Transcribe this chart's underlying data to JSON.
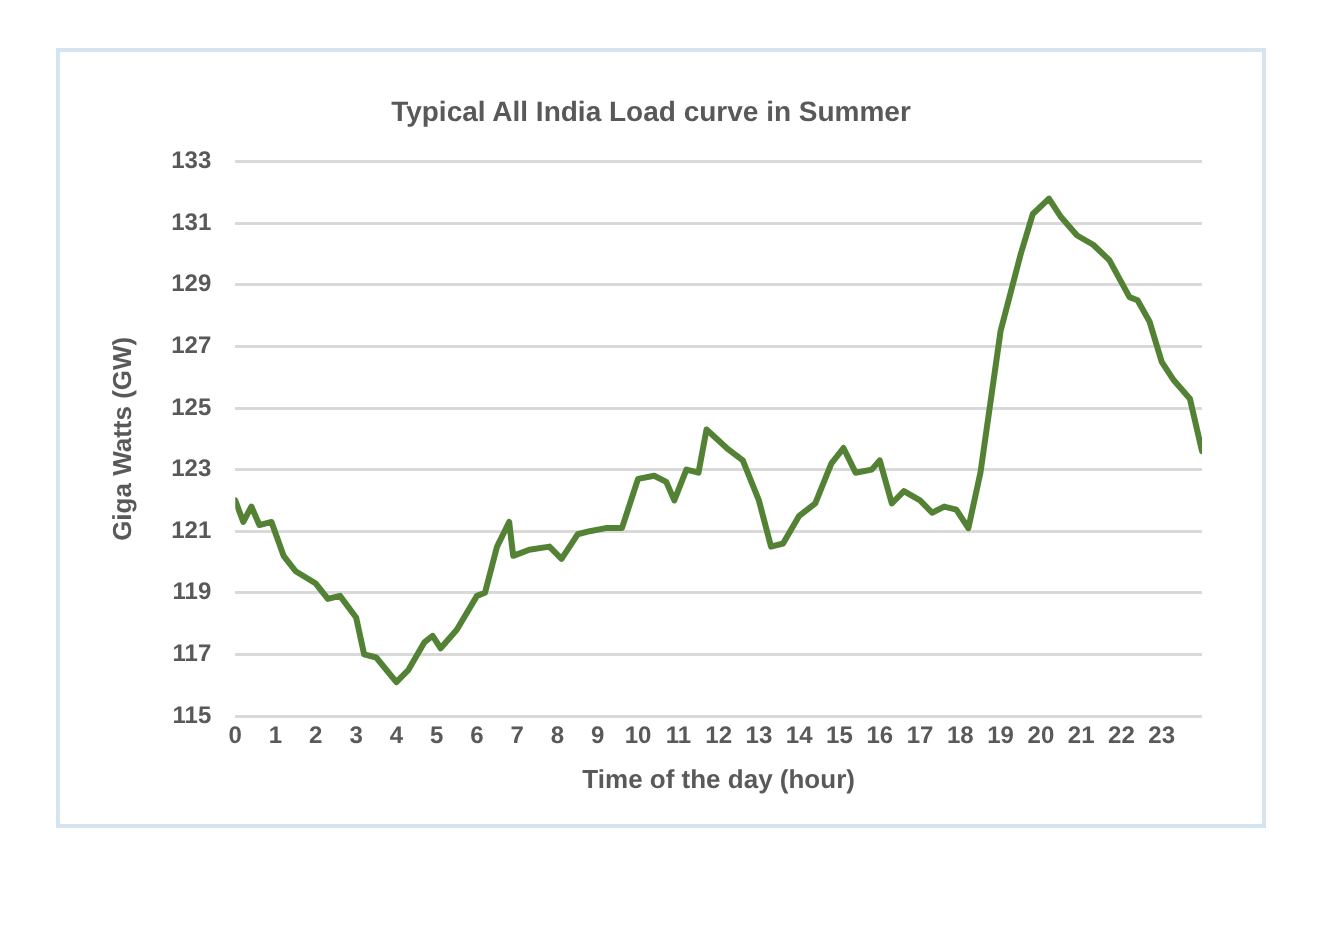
{
  "chart_data": {
    "type": "line",
    "title": "Typical All India Load curve in Summer",
    "xlabel": "Time of the day (hour)",
    "ylabel": "Giga Watts (GW)",
    "x": [
      0,
      0.2,
      0.4,
      0.6,
      0.9,
      1.2,
      1.5,
      2,
      2.3,
      2.6,
      3,
      3.2,
      3.5,
      4,
      4.3,
      4.7,
      4.9,
      5.1,
      5.5,
      6,
      6.2,
      6.5,
      6.8,
      6.9,
      7.3,
      7.8,
      8.1,
      8.5,
      8.8,
      9.2,
      9.6,
      10,
      10.4,
      10.7,
      10.9,
      11.2,
      11.5,
      11.7,
      12.2,
      12.6,
      13,
      13.3,
      13.6,
      14,
      14.4,
      14.8,
      15.1,
      15.4,
      15.8,
      16,
      16.3,
      16.6,
      17,
      17.3,
      17.6,
      17.9,
      18.2,
      18.5,
      19,
      19.5,
      19.8,
      20.2,
      20.5,
      20.9,
      21.3,
      21.7,
      22.2,
      22.4,
      22.7,
      23,
      23.3,
      23.7,
      24
    ],
    "series": [
      {
        "color": "#548235",
        "values": [
          122.0,
          121.3,
          121.8,
          121.2,
          121.3,
          120.2,
          119.7,
          119.3,
          118.8,
          118.9,
          118.2,
          117.0,
          116.9,
          116.1,
          116.5,
          117.4,
          117.6,
          117.2,
          117.8,
          118.9,
          119.0,
          120.5,
          121.3,
          120.2,
          120.4,
          120.5,
          120.1,
          120.9,
          121.0,
          121.1,
          121.1,
          122.7,
          122.8,
          122.6,
          122.0,
          123.0,
          122.9,
          124.3,
          123.7,
          123.3,
          122.0,
          120.5,
          120.6,
          121.5,
          121.9,
          123.2,
          123.7,
          122.9,
          123.0,
          123.3,
          121.9,
          122.3,
          122.0,
          121.6,
          121.8,
          121.7,
          121.1,
          122.9,
          127.5,
          130.0,
          131.3,
          131.8,
          131.2,
          130.6,
          130.3,
          129.8,
          128.6,
          128.5,
          127.8,
          126.5,
          125.9,
          125.3,
          123.6
        ]
      }
    ],
    "xlim": [
      0,
      24
    ],
    "xticks": [
      0,
      1,
      2,
      3,
      4,
      5,
      6,
      7,
      8,
      9,
      10,
      11,
      12,
      13,
      14,
      15,
      16,
      17,
      18,
      19,
      20,
      21,
      22,
      23
    ],
    "ylim": [
      115,
      133
    ],
    "yticks": [
      115,
      117,
      119,
      121,
      123,
      125,
      127,
      129,
      131,
      133
    ],
    "grid": "y",
    "legend": false,
    "marker": "none",
    "line_style": "solid"
  }
}
